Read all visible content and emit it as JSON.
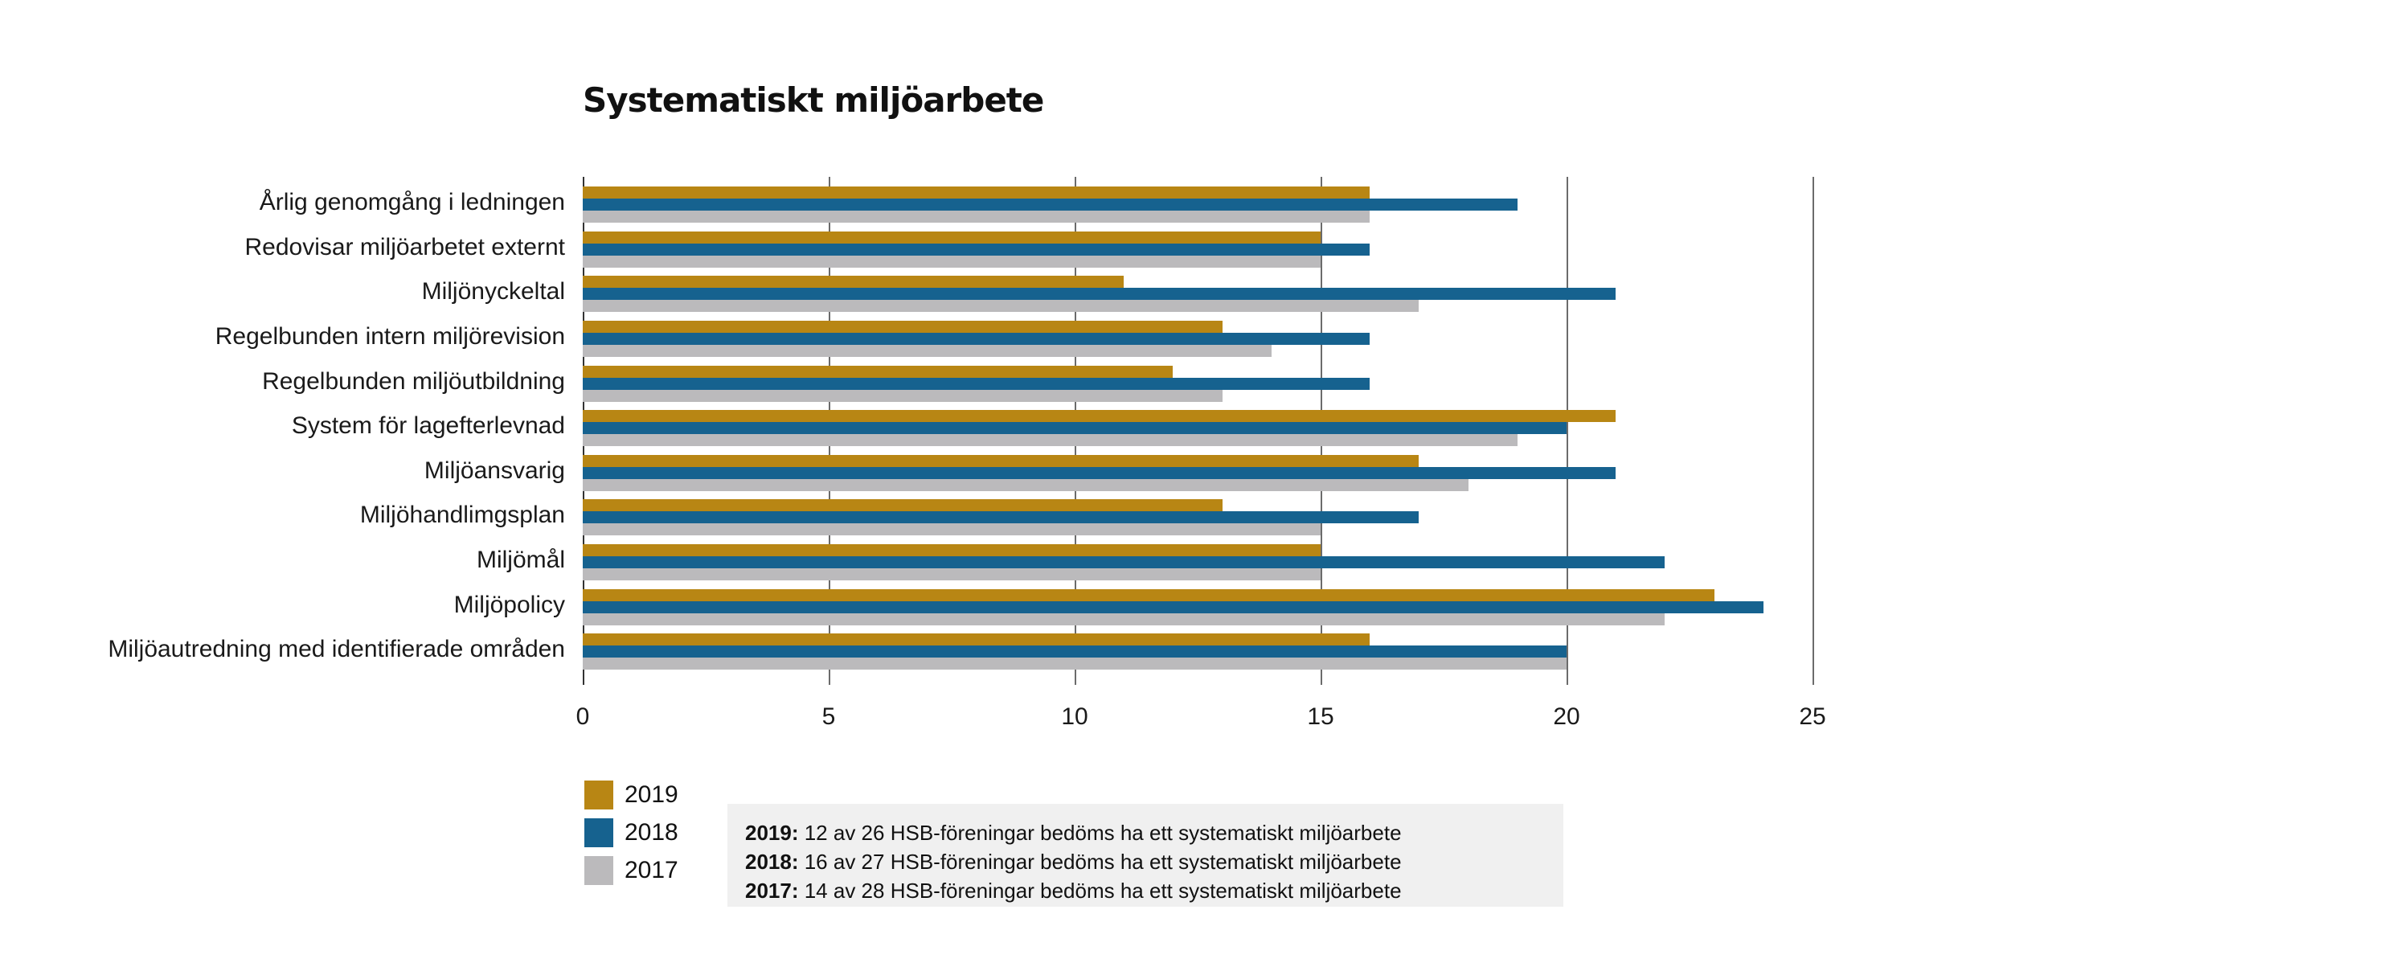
{
  "chart_data": {
    "type": "bar",
    "orientation": "horizontal",
    "title": "Systematiskt miljöarbete",
    "xlabel": "",
    "ylabel": "",
    "xlim": [
      0,
      25
    ],
    "xticks": [
      0,
      5,
      10,
      15,
      20,
      25
    ],
    "grid": true,
    "legend_position": "bottom-left",
    "categories": [
      "Årlig genomgång i ledningen",
      "Redovisar miljöarbetet externt",
      "Miljönyckeltal",
      "Regelbunden intern miljörevision",
      "Regelbunden miljöutbildning",
      "System för lagefterlevnad",
      "Miljöansvarig",
      "Miljöhandlimgsplan",
      "Miljömål",
      "Miljöpolicy",
      "Miljöautredning med identifierade områden"
    ],
    "series": [
      {
        "name": "2019",
        "color": "#b88614",
        "values": [
          16,
          15,
          11,
          13,
          12,
          21,
          17,
          13,
          15,
          23,
          16
        ]
      },
      {
        "name": "2018",
        "color": "#16628f",
        "values": [
          19,
          16,
          21,
          16,
          16,
          20,
          21,
          17,
          22,
          24,
          20
        ]
      },
      {
        "name": "2017",
        "color": "#bbbabc",
        "values": [
          16,
          15,
          17,
          14,
          13,
          19,
          18,
          15,
          15,
          22,
          20
        ]
      }
    ],
    "annotations": [
      {
        "year": "2019:",
        "text": " 12 av 26 HSB-föreningar bedöms ha ett systematiskt miljöarbete"
      },
      {
        "year": "2018:",
        "text": " 16 av 27 HSB-föreningar bedöms ha ett systematiskt miljöarbete"
      },
      {
        "year": "2017:",
        "text": " 14 av 28 HSB-föreningar bedöms ha ett systematiskt miljöarbete"
      }
    ]
  }
}
